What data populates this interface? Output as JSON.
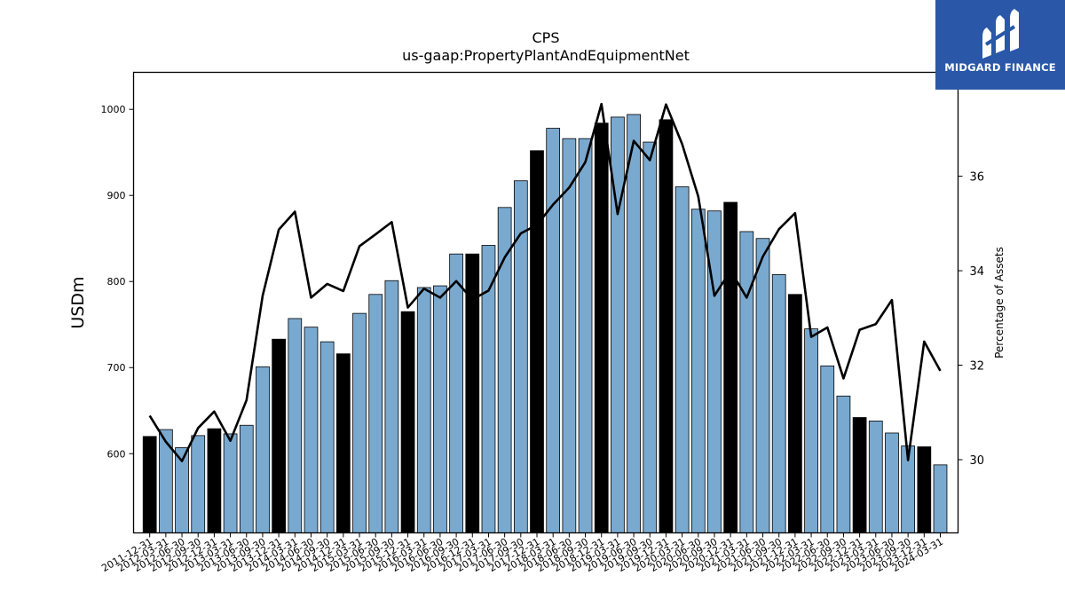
{
  "chart_data": {
    "type": "bar",
    "title": "CPS",
    "subtitle": "us-gaap:PropertyPlantAndEquipmentNet",
    "ylabel": "USDm",
    "y2label": "Percentage of Assets",
    "ylim": [
      508,
      1043
    ],
    "y2lim": [
      28.45,
      38.2
    ],
    "yticks": [
      600,
      700,
      800,
      900,
      1000
    ],
    "y2ticks": [
      30,
      32,
      34,
      36
    ],
    "colors": {
      "bar": "#7aa9d0",
      "bar_highlight": "#000000",
      "line": "#000000"
    },
    "categories": [
      "2011-12-31",
      "2012-03-31",
      "2012-06-30",
      "2012-09-30",
      "2012-12-31",
      "2013-03-31",
      "2013-06-30",
      "2013-09-30",
      "2013-12-31",
      "2014-03-31",
      "2014-06-30",
      "2014-09-30",
      "2014-12-31",
      "2015-03-31",
      "2015-06-30",
      "2015-09-30",
      "2015-12-31",
      "2016-03-31",
      "2016-06-30",
      "2016-09-30",
      "2016-12-31",
      "2017-03-31",
      "2017-06-30",
      "2017-09-30",
      "2017-12-31",
      "2018-03-31",
      "2018-06-30",
      "2018-09-30",
      "2018-12-31",
      "2019-03-31",
      "2019-06-30",
      "2019-09-30",
      "2019-12-31",
      "2020-03-31",
      "2020-06-30",
      "2020-09-30",
      "2020-12-31",
      "2021-03-31",
      "2021-06-30",
      "2021-09-30",
      "2021-12-31",
      "2022-03-31",
      "2022-06-30",
      "2022-09-30",
      "2022-12-31",
      "2023-03-31",
      "2023-06-30",
      "2023-09-30",
      "2023-12-31",
      "2024-03-31"
    ],
    "series": [
      {
        "name": "USDm",
        "type": "bar",
        "values": [
          620,
          628,
          607,
          621,
          629,
          623,
          633,
          701,
          733,
          757,
          747,
          730,
          716,
          763,
          785,
          801,
          765,
          793,
          795,
          832,
          832,
          842,
          886,
          917,
          952,
          978,
          966,
          966,
          984,
          991,
          994,
          962,
          988,
          910,
          884,
          882,
          892,
          858,
          850,
          808,
          785,
          745,
          702,
          667,
          642,
          638,
          624,
          609,
          608,
          587
        ],
        "highlight": [
          true,
          false,
          false,
          false,
          true,
          false,
          false,
          false,
          true,
          false,
          false,
          false,
          true,
          false,
          false,
          false,
          true,
          false,
          false,
          false,
          true,
          false,
          false,
          false,
          true,
          false,
          false,
          false,
          true,
          false,
          false,
          false,
          true,
          false,
          false,
          false,
          true,
          false,
          false,
          false,
          true,
          false,
          false,
          false,
          true,
          false,
          false,
          false,
          true,
          false
        ]
      },
      {
        "name": "Percentage of Assets",
        "type": "line",
        "axis": "right",
        "values": [
          30.93,
          30.38,
          29.97,
          30.67,
          31.02,
          30.4,
          31.26,
          33.47,
          34.87,
          35.25,
          33.43,
          33.72,
          33.57,
          34.52,
          34.77,
          35.03,
          33.22,
          33.62,
          33.43,
          33.78,
          33.39,
          33.58,
          34.28,
          34.79,
          34.97,
          35.4,
          35.76,
          36.3,
          37.53,
          35.2,
          36.75,
          36.34,
          37.52,
          36.68,
          35.57,
          33.47,
          34.0,
          33.43,
          34.3,
          34.88,
          35.22,
          32.6,
          32.8,
          31.72,
          32.75,
          32.87,
          33.38,
          29.99,
          32.5,
          31.88
        ]
      }
    ]
  },
  "logo": {
    "text": "MIDGARD FINANCE"
  }
}
